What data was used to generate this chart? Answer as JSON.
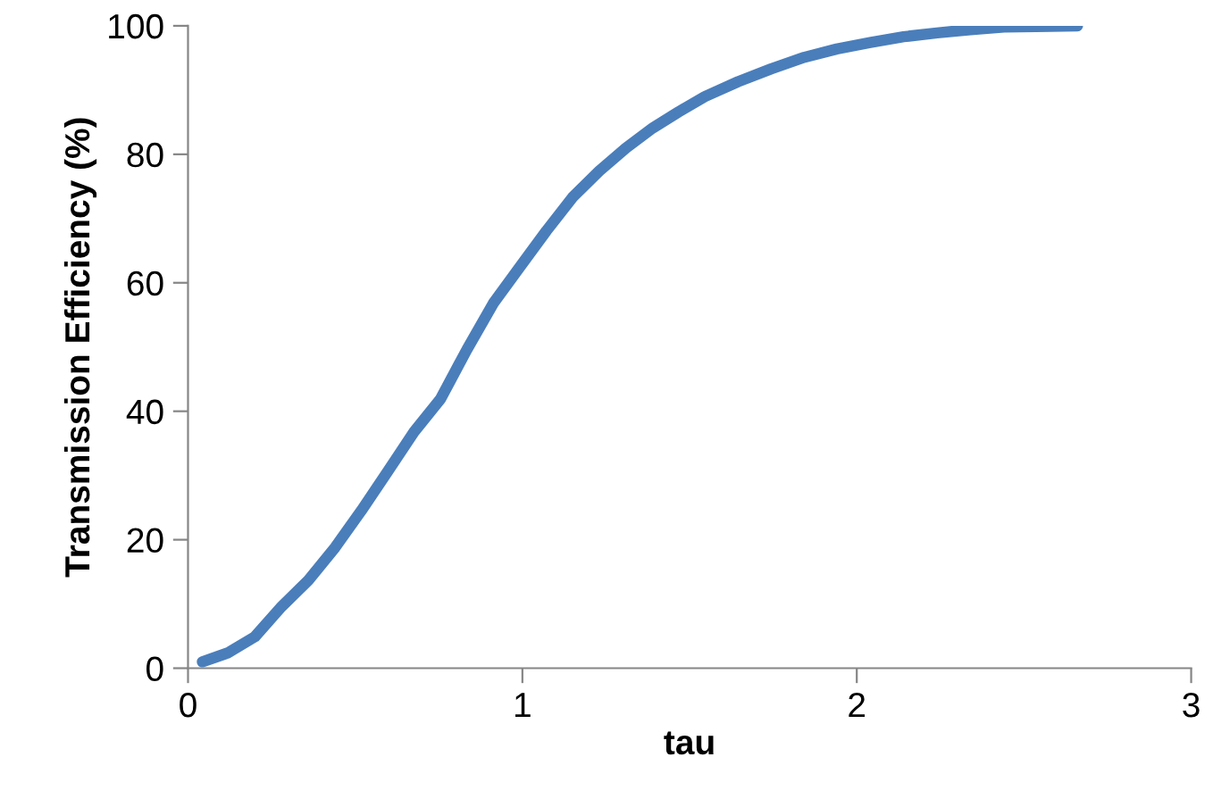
{
  "chart_data": {
    "type": "line",
    "xlabel": "tau",
    "ylabel": "Transmission Efficiency (%)",
    "xlim": [
      0,
      3
    ],
    "xticks": [
      0,
      1,
      2,
      3
    ],
    "ylim": [
      0,
      100
    ],
    "yticks": [
      0,
      20,
      40,
      60,
      80,
      100
    ],
    "series": [
      {
        "color": "#4a7ebb",
        "x": [
          0.043,
          0.12,
          0.2,
          0.28,
          0.36,
          0.44,
          0.518,
          0.597,
          0.676,
          0.755,
          0.834,
          0.913,
          0.993,
          1.072,
          1.15,
          1.23,
          1.31,
          1.39,
          1.467,
          1.546,
          1.645,
          1.744,
          1.843,
          1.94,
          2.04,
          2.14,
          2.24,
          2.34,
          2.44,
          2.535,
          2.66
        ],
        "values": [
          1.0,
          2.4,
          4.9,
          9.6,
          13.7,
          18.8,
          24.5,
          30.6,
          36.8,
          41.9,
          49.6,
          56.8,
          62.5,
          68.1,
          73.3,
          77.4,
          81.0,
          84.1,
          86.6,
          89.0,
          91.3,
          93.3,
          95.1,
          96.4,
          97.4,
          98.3,
          98.9,
          99.4,
          99.8,
          99.9,
          100
        ]
      }
    ]
  }
}
